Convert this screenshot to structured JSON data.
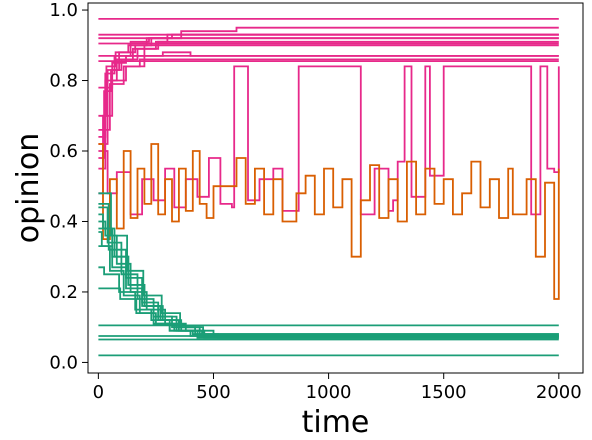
{
  "chart_data": {
    "type": "line",
    "step": true,
    "xlabel": "time",
    "ylabel": "opinion",
    "xlim": [
      -45,
      2105
    ],
    "ylim": [
      -0.03,
      1.02
    ],
    "xticks": [
      "0",
      "500",
      "1000",
      "1500",
      "2000"
    ],
    "yticks": [
      "0.0",
      "0.2",
      "0.4",
      "0.6",
      "0.8",
      "1.0"
    ],
    "grid": false,
    "legend": "none",
    "colors": {
      "pink": "#e7298a",
      "orange": "#d95f02",
      "teal": "#1b9e77"
    },
    "series": [
      {
        "color": "pink",
        "x": [
          0,
          2000
        ],
        "y": [
          0.975,
          0.975
        ]
      },
      {
        "color": "pink",
        "x": [
          0,
          2000
        ],
        "y": [
          0.93,
          0.93
        ]
      },
      {
        "color": "pink",
        "x": [
          0,
          2000
        ],
        "y": [
          0.92,
          0.92
        ]
      },
      {
        "color": "pink",
        "x": [
          0,
          2000
        ],
        "y": [
          0.905,
          0.905
        ]
      },
      {
        "color": "pink",
        "x": [
          0,
          2000
        ],
        "y": [
          0.87,
          0.87
        ]
      },
      {
        "color": "pink",
        "x": [
          0,
          2000
        ],
        "y": [
          0.855,
          0.855
        ]
      },
      {
        "color": "pink",
        "x": [
          0,
          60,
          120,
          200,
          260,
          300,
          360,
          600,
          2000
        ],
        "y": [
          0.78,
          0.85,
          0.87,
          0.9,
          0.91,
          0.92,
          0.94,
          0.95,
          0.95
        ]
      },
      {
        "color": "pink",
        "x": [
          0,
          40,
          90,
          160,
          230,
          320,
          2000
        ],
        "y": [
          0.62,
          0.83,
          0.88,
          0.9,
          0.92,
          0.93,
          0.93
        ]
      },
      {
        "color": "pink",
        "x": [
          0,
          30,
          80,
          150,
          250,
          2000
        ],
        "y": [
          0.55,
          0.8,
          0.86,
          0.89,
          0.91,
          0.91
        ]
      },
      {
        "color": "pink",
        "x": [
          0,
          50,
          110,
          200,
          280,
          400,
          2000
        ],
        "y": [
          0.66,
          0.79,
          0.84,
          0.87,
          0.88,
          0.87,
          0.87
        ]
      },
      {
        "color": "pink",
        "x": [
          0,
          20,
          60,
          120,
          180,
          240,
          2000
        ],
        "y": [
          0.48,
          0.7,
          0.8,
          0.84,
          0.86,
          0.86,
          0.86
        ]
      },
      {
        "color": "pink",
        "x": [
          0,
          35,
          75,
          130,
          210,
          300,
          2000
        ],
        "y": [
          0.7,
          0.84,
          0.88,
          0.9,
          0.92,
          0.93,
          0.93
        ]
      },
      {
        "color": "pink",
        "x": [
          0,
          25,
          55,
          100,
          170,
          260,
          2000
        ],
        "y": [
          0.58,
          0.77,
          0.83,
          0.86,
          0.89,
          0.9,
          0.9
        ]
      },
      {
        "color": "pink",
        "x": [
          0,
          30,
          70,
          140,
          220,
          2000
        ],
        "y": [
          0.64,
          0.82,
          0.87,
          0.91,
          0.92,
          0.92
        ]
      },
      {
        "color": "pink",
        "x": [
          0,
          40,
          80,
          140,
          190,
          240,
          290,
          330,
          380,
          430,
          480,
          530,
          580,
          590,
          650,
          700,
          760,
          800,
          870,
          920,
          980,
          1120,
          1140,
          1200,
          1260,
          1280,
          1300,
          1330,
          1360,
          1420,
          1440,
          1500,
          1800,
          1880,
          1920,
          1950,
          1980,
          2000
        ],
        "y": [
          0.6,
          0.48,
          0.54,
          0.42,
          0.52,
          0.46,
          0.55,
          0.44,
          0.52,
          0.47,
          0.58,
          0.45,
          0.44,
          0.84,
          0.46,
          0.52,
          0.55,
          0.43,
          0.84,
          0.84,
          0.84,
          0.84,
          0.42,
          0.55,
          0.43,
          0.46,
          0.57,
          0.84,
          0.47,
          0.84,
          0.53,
          0.84,
          0.84,
          0.42,
          0.84,
          0.55,
          0.54,
          0.84
        ]
      },
      {
        "color": "orange",
        "x": [
          0,
          20,
          50,
          80,
          110,
          140,
          170,
          200,
          230,
          260,
          290,
          320,
          350,
          380,
          410,
          440,
          470,
          500,
          560,
          600,
          640,
          680,
          720,
          760,
          800,
          860,
          900,
          940,
          980,
          1020,
          1060,
          1100,
          1140,
          1180,
          1220,
          1260,
          1300,
          1340,
          1380,
          1420,
          1460,
          1500,
          1540,
          1580,
          1620,
          1660,
          1700,
          1740,
          1780,
          1800,
          1860,
          1900,
          1940,
          1980,
          2000
        ],
        "y": [
          0.62,
          0.35,
          0.52,
          0.38,
          0.6,
          0.41,
          0.55,
          0.45,
          0.62,
          0.42,
          0.52,
          0.4,
          0.55,
          0.43,
          0.6,
          0.45,
          0.41,
          0.5,
          0.5,
          0.58,
          0.45,
          0.55,
          0.42,
          0.52,
          0.4,
          0.48,
          0.53,
          0.42,
          0.55,
          0.44,
          0.52,
          0.3,
          0.46,
          0.56,
          0.41,
          0.52,
          0.4,
          0.57,
          0.42,
          0.55,
          0.45,
          0.52,
          0.42,
          0.48,
          0.57,
          0.44,
          0.52,
          0.41,
          0.55,
          0.42,
          0.52,
          0.3,
          0.51,
          0.18,
          0.55
        ]
      },
      {
        "color": "teal",
        "x": [
          0,
          2000
        ],
        "y": [
          0.105,
          0.105
        ]
      },
      {
        "color": "teal",
        "x": [
          0,
          2000
        ],
        "y": [
          0.075,
          0.075
        ]
      },
      {
        "color": "teal",
        "x": [
          0,
          2000
        ],
        "y": [
          0.065,
          0.065
        ]
      },
      {
        "color": "teal",
        "x": [
          0,
          2000
        ],
        "y": [
          0.02,
          0.02
        ]
      },
      {
        "color": "teal",
        "x": [
          0,
          60,
          130,
          200,
          270,
          350,
          450,
          2000
        ],
        "y": [
          0.38,
          0.3,
          0.22,
          0.16,
          0.12,
          0.09,
          0.075,
          0.075
        ]
      },
      {
        "color": "teal",
        "x": [
          0,
          40,
          100,
          170,
          240,
          320,
          420,
          2000
        ],
        "y": [
          0.44,
          0.34,
          0.25,
          0.18,
          0.13,
          0.1,
          0.08,
          0.08
        ]
      },
      {
        "color": "teal",
        "x": [
          0,
          30,
          80,
          140,
          210,
          290,
          380,
          500,
          2000
        ],
        "y": [
          0.4,
          0.36,
          0.28,
          0.2,
          0.15,
          0.11,
          0.09,
          0.075,
          0.075
        ]
      },
      {
        "color": "teal",
        "x": [
          0,
          50,
          110,
          180,
          250,
          330,
          430,
          2000
        ],
        "y": [
          0.33,
          0.26,
          0.19,
          0.14,
          0.11,
          0.09,
          0.07,
          0.07
        ]
      },
      {
        "color": "teal",
        "x": [
          0,
          20,
          70,
          130,
          200,
          280,
          360,
          460,
          2000
        ],
        "y": [
          0.42,
          0.38,
          0.3,
          0.22,
          0.16,
          0.12,
          0.09,
          0.07,
          0.07
        ]
      },
      {
        "color": "teal",
        "x": [
          0,
          25,
          90,
          160,
          230,
          310,
          400,
          2000
        ],
        "y": [
          0.27,
          0.25,
          0.2,
          0.15,
          0.12,
          0.09,
          0.075,
          0.075
        ]
      },
      {
        "color": "teal",
        "x": [
          0,
          35,
          95,
          165,
          240,
          310,
          410,
          520,
          2000
        ],
        "y": [
          0.21,
          0.21,
          0.18,
          0.14,
          0.11,
          0.09,
          0.08,
          0.07,
          0.07
        ]
      },
      {
        "color": "teal",
        "x": [
          0,
          45,
          120,
          190,
          260,
          340,
          440,
          2000
        ],
        "y": [
          0.45,
          0.32,
          0.24,
          0.17,
          0.13,
          0.1,
          0.08,
          0.08
        ]
      },
      {
        "color": "teal",
        "x": [
          0,
          15,
          60,
          120,
          190,
          260,
          340,
          440,
          2000
        ],
        "y": [
          0.37,
          0.33,
          0.27,
          0.21,
          0.16,
          0.12,
          0.09,
          0.075,
          0.075
        ]
      },
      {
        "color": "teal",
        "x": [
          0,
          55,
          125,
          195,
          275,
          355,
          455,
          2000
        ],
        "y": [
          0.48,
          0.36,
          0.26,
          0.19,
          0.14,
          0.1,
          0.08,
          0.08
        ]
      }
    ]
  }
}
